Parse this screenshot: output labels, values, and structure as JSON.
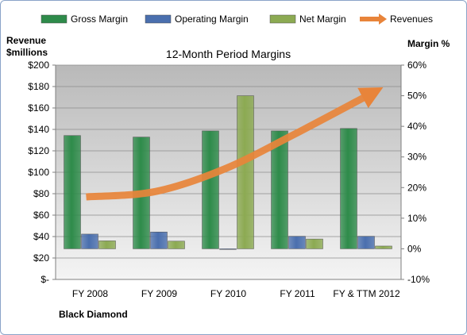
{
  "chart_data": {
    "type": "bar",
    "title": "12-Month Period Margins",
    "categories": [
      "FY 2008",
      "FY 2009",
      "FY 2010",
      "FY 2011",
      "FY & TTM 2012"
    ],
    "series": [
      {
        "name": "Gross Margin",
        "axis": "right",
        "color": "#2e8b4a",
        "values": [
          37.0,
          36.5,
          38.5,
          38.5,
          39.3
        ]
      },
      {
        "name": "Operating Margin",
        "axis": "right",
        "color": "#4a6fae",
        "values": [
          4.8,
          5.5,
          -0.2,
          4.1,
          4.1
        ]
      },
      {
        "name": "Net Margin",
        "axis": "right",
        "color": "#8caa52",
        "values": [
          2.6,
          2.5,
          50.0,
          3.2,
          0.9
        ]
      },
      {
        "name": "Revenues",
        "axis": "left",
        "type": "arrow-line",
        "color": "#e8843a",
        "values": [
          77,
          82,
          103,
          135,
          173
        ]
      }
    ],
    "left_axis": {
      "label_line1": "Revenue",
      "label_line2": "$millions",
      "min": 0,
      "max": 200,
      "step": 20,
      "ticks": [
        "$-",
        "$20",
        "$40",
        "$60",
        "$80",
        "$100",
        "$120",
        "$140",
        "$160",
        "$180",
        "$200"
      ]
    },
    "right_axis": {
      "label": "Margin %",
      "min": -10,
      "max": 60,
      "step": 10,
      "ticks": [
        "-10%",
        "0%",
        "10%",
        "20%",
        "30%",
        "40%",
        "50%",
        "60%"
      ]
    },
    "footer": "Black Diamond",
    "grid": true,
    "legend_position": "top"
  }
}
